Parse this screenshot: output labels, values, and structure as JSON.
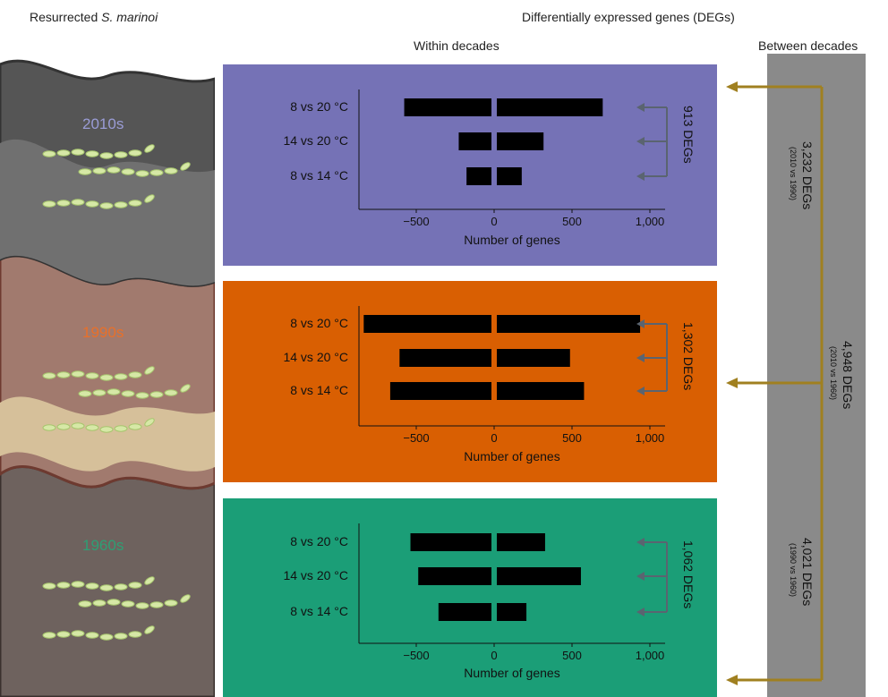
{
  "header": {
    "left_title_prefix": "Resurrected ",
    "left_title_species": "S. marinoi",
    "top_title": "Differentially expressed genes (DEGs)",
    "within_title": "Within decades",
    "between_title": "Between decades"
  },
  "decades": [
    {
      "label": "2010s",
      "color": "#9a9cd6"
    },
    {
      "label": "1990s",
      "color": "#e8702a"
    },
    {
      "label": "1960s",
      "color": "#2e9f74"
    }
  ],
  "colors": {
    "panel_2010s": "#7572b6",
    "panel_1990s": "#d95f02",
    "panel_1960s": "#1b9e77",
    "between_bar": "#8a8a8a",
    "arrow_gold": "#a08020",
    "bracket": "#5a6470"
  },
  "between": {
    "a_count": "3,232 DEGs",
    "a_sub": "(2010 vs 1990)",
    "b_count": "4,948 DEGs",
    "b_sub": "(2010 vs 1960)",
    "c_count": "4,021 DEGs",
    "c_sub": "(1990 vs 1960)"
  },
  "chart_data": [
    {
      "type": "bar",
      "orientation": "horizontal-diverging",
      "decade": "2010s",
      "categories": [
        "8 vs 20 °C",
        "14 vs 20 °C",
        "8 vs 14 °C"
      ],
      "series": [
        {
          "values": [
            -560,
            -210,
            -160
          ]
        },
        {
          "values": [
            680,
            300,
            160
          ]
        }
      ],
      "total_label": "913 DEGs",
      "xlabel": "Number of genes",
      "xticks": [
        "−500",
        "0",
        "500",
        "1,000"
      ],
      "xlim": [
        -850,
        1150
      ]
    },
    {
      "type": "bar",
      "orientation": "horizontal-diverging",
      "decade": "1990s",
      "categories": [
        "8 vs 20 °C",
        "14 vs 20 °C",
        "8 vs 14 °C"
      ],
      "series": [
        {
          "values": [
            -820,
            -590,
            -650
          ]
        },
        {
          "values": [
            920,
            470,
            560
          ]
        }
      ],
      "total_label": "1,302 DEGs",
      "xlabel": "Number of genes",
      "xticks": [
        "−500",
        "0",
        "500",
        "1,000"
      ],
      "xlim": [
        -850,
        1150
      ]
    },
    {
      "type": "bar",
      "orientation": "horizontal-diverging",
      "decade": "1960s",
      "categories": [
        "8 vs 20 °C",
        "14 vs 20 °C",
        "8 vs 14 °C"
      ],
      "series": [
        {
          "values": [
            -520,
            -470,
            -340
          ]
        },
        {
          "values": [
            310,
            540,
            190
          ]
        }
      ],
      "total_label": "1,062 DEGs",
      "xlabel": "Number of genes",
      "xticks": [
        "−500",
        "0",
        "500",
        "1,000"
      ],
      "xlim": [
        -850,
        1150
      ]
    }
  ]
}
